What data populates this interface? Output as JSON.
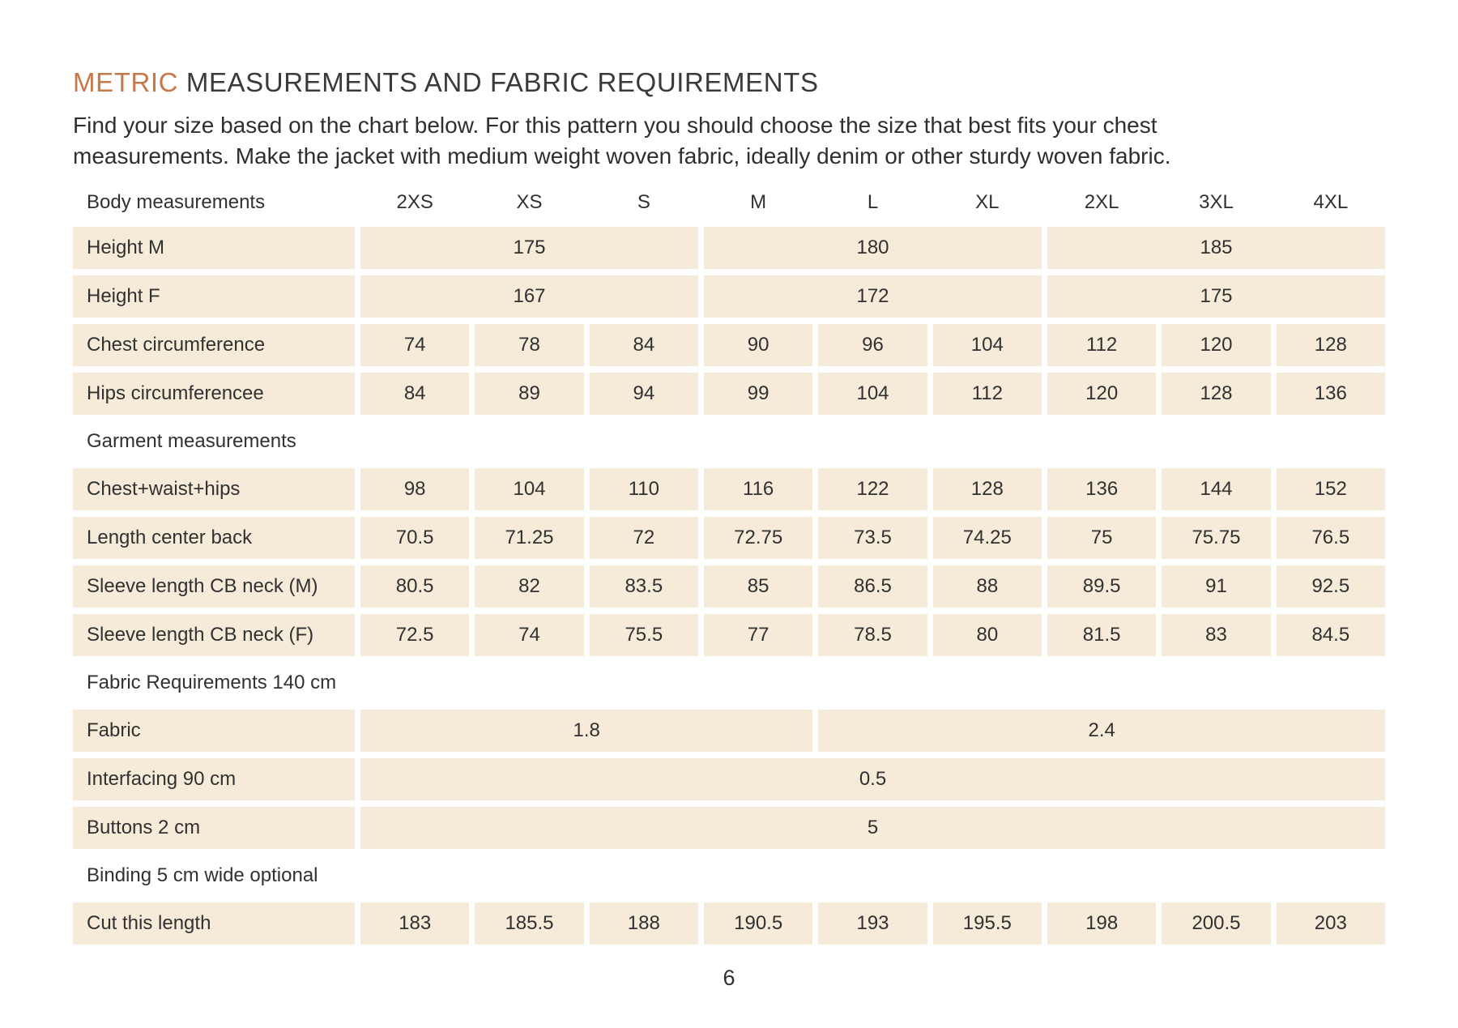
{
  "colors": {
    "accent": "#c5794a",
    "cell_bg": "#f5ebd8",
    "text": "#313131"
  },
  "page": {
    "title_accent": "METRIC",
    "title_rest": " MEASUREMENTS AND FABRIC REQUIREMENTS",
    "intro": "Find your size based on the chart below. For this pattern you should choose the size that best fits your chest measurements. Make the jacket with medium weight woven fabric, ideally denim or other sturdy woven fabric.",
    "page_number": "6"
  },
  "table": {
    "header": {
      "label": "Body measurements",
      "sizes": [
        "2XS",
        "XS",
        "S",
        "M",
        "L",
        "XL",
        "2XL",
        "3XL",
        "4XL"
      ]
    },
    "height_m": {
      "label": "Height M",
      "values": [
        "175",
        "180",
        "185"
      ]
    },
    "height_f": {
      "label": "Height F",
      "values": [
        "167",
        "172",
        "175"
      ]
    },
    "chest": {
      "label": "Chest circumference",
      "values": [
        "74",
        "78",
        "84",
        "90",
        "96",
        "104",
        "112",
        "120",
        "128"
      ]
    },
    "hips": {
      "label": "Hips circumferencee",
      "values": [
        "84",
        "89",
        "94",
        "99",
        "104",
        "112",
        "120",
        "128",
        "136"
      ]
    },
    "garment_section": "Garment measurements",
    "cwh": {
      "label": "Chest+waist+hips",
      "values": [
        "98",
        "104",
        "110",
        "116",
        "122",
        "128",
        "136",
        "144",
        "152"
      ]
    },
    "length_cb": {
      "label": "Length center back",
      "values": [
        "70.5",
        "71.25",
        "72",
        "72.75",
        "73.5",
        "74.25",
        "75",
        "75.75",
        "76.5"
      ]
    },
    "sleeve_m": {
      "label": "Sleeve length CB neck (M)",
      "values": [
        "80.5",
        "82",
        "83.5",
        "85",
        "86.5",
        "88",
        "89.5",
        "91",
        "92.5"
      ]
    },
    "sleeve_f": {
      "label": "Sleeve length CB neck (F)",
      "values": [
        "72.5",
        "74",
        "75.5",
        "77",
        "78.5",
        "80",
        "81.5",
        "83",
        "84.5"
      ]
    },
    "fabric_section": "Fabric Requirements 140 cm",
    "fabric": {
      "label": "Fabric",
      "values": [
        "1.8",
        "2.4"
      ]
    },
    "interfacing": {
      "label": "Interfacing 90 cm",
      "values": [
        "0.5"
      ]
    },
    "buttons": {
      "label": "Buttons 2 cm",
      "values": [
        "5"
      ]
    },
    "binding_section": "Binding 5 cm wide optional",
    "cut_length": {
      "label": "Cut this length",
      "values": [
        "183",
        "185.5",
        "188",
        "190.5",
        "193",
        "195.5",
        "198",
        "200.5",
        "203"
      ]
    }
  }
}
